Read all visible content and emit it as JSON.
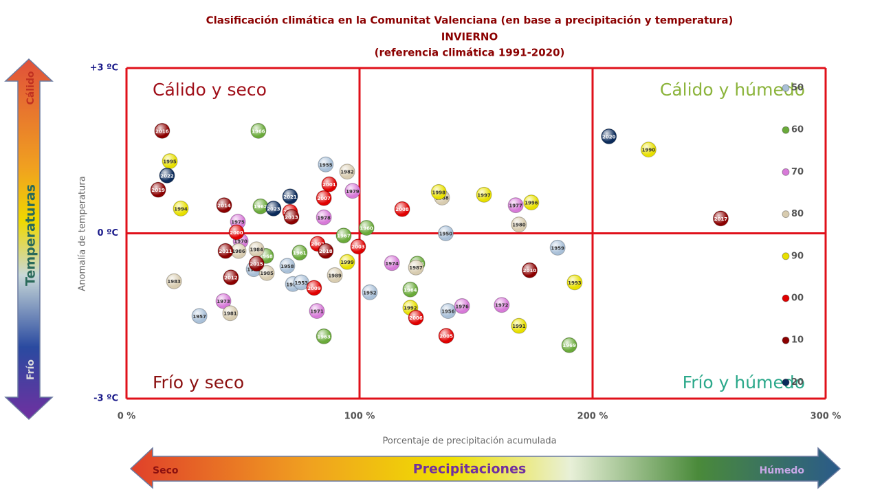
{
  "chart_data": {
    "type": "scatter",
    "title": "Clasificación climática en la Comunitat Valenciana (en base a precipitación y temperatura)",
    "subtitle": "INVIERNO",
    "subtitle2": "(referencia climática 1991-2020)",
    "xlabel": "Porcentaje de precipitación acumulada",
    "ylabel": "Anomalía de temperatura",
    "xlim": [
      0,
      300
    ],
    "ylim": [
      -3,
      3
    ],
    "xticks": [
      {
        "value": 0,
        "label": "0 %"
      },
      {
        "value": 100,
        "label": "100 %"
      },
      {
        "value": 200,
        "label": "200 %"
      },
      {
        "value": 300,
        "label": "300 %"
      }
    ],
    "yticks": [
      {
        "value": 3,
        "label": "+3 ºC"
      },
      {
        "value": 0,
        "label": "0 ºC"
      },
      {
        "value": -3,
        "label": "-3 ºC"
      }
    ],
    "grid": true,
    "grid_color": "#e0101a",
    "legend": "right",
    "quadrants": {
      "top_left": {
        "text": "Cálido y seco",
        "color": "#a0101a"
      },
      "top_right": {
        "text": "Cálido y húmedo",
        "color": "#8cb43c"
      },
      "bottom_left": {
        "text": "Frío y seco",
        "color": "#8b1010"
      },
      "bottom_right": {
        "text": "Frío y húmedo",
        "color": "#2aa88a"
      }
    },
    "annotations": {
      "temperature": "Temperaturas",
      "warm": "Cálido",
      "cold": "Frío",
      "precipitation": "Precipitaciones",
      "dry": "Seco",
      "wet": "Húmedo"
    },
    "series": [
      {
        "name": "50",
        "color": "#a9c0d8",
        "labels": [
          "1955",
          "1950",
          "1959",
          "1958",
          "1954",
          "1953",
          "1952",
          "1956",
          "1957",
          "1951"
        ],
        "x": [
          85.5,
          137,
          185,
          69,
          71.4,
          75,
          104.4,
          138,
          31.3,
          54.6
        ],
        "values": [
          1.25,
          0,
          -0.26,
          -0.59,
          -0.92,
          -0.89,
          -1.07,
          -1.41,
          -1.5,
          -0.65
        ]
      },
      {
        "name": "60",
        "color": "#6aaa3a",
        "labels": [
          "1966",
          "1962",
          "1960",
          "1967",
          "1961",
          "1968",
          "1965",
          "1964",
          "1963",
          "1969"
        ],
        "x": [
          56.6,
          57.5,
          103,
          93.2,
          74.3,
          59.9,
          124.8,
          121.8,
          84.7,
          190
        ],
        "values": [
          1.86,
          0.49,
          0.1,
          -0.04,
          -0.35,
          -0.41,
          -0.55,
          -1.02,
          -1.87,
          -2.03
        ]
      },
      {
        "name": "70",
        "color": "#d77ad8",
        "labels": [
          "1979",
          "1978",
          "1977",
          "1975",
          "1970",
          "1974",
          "1976",
          "1972",
          "1973",
          "1971"
        ],
        "x": [
          97,
          84.7,
          167,
          47.8,
          49,
          113.9,
          144,
          161,
          41.6,
          81.7
        ],
        "values": [
          0.77,
          0.29,
          0.51,
          0.21,
          -0.14,
          -0.54,
          -1.32,
          -1.3,
          -1.23,
          -1.41
        ]
      },
      {
        "name": "80",
        "color": "#d8ccb0",
        "labels": [
          "1982",
          "1988",
          "1980",
          "1984",
          "1986",
          "1985",
          "1987",
          "1989",
          "1983",
          "1981"
        ],
        "x": [
          94.7,
          135.4,
          168.4,
          55.8,
          48.1,
          60.2,
          124.2,
          89.4,
          20.4,
          44.5
        ],
        "values": [
          1.12,
          0.65,
          0.16,
          -0.29,
          -0.32,
          -0.72,
          -0.62,
          -0.76,
          -0.87,
          -1.45
        ]
      },
      {
        "name": "90",
        "color": "#e8e000",
        "labels": [
          "1995",
          "1994",
          "1990",
          "1998",
          "1997",
          "1996",
          "1999",
          "1993",
          "1992",
          "1991"
        ],
        "x": [
          18.6,
          23.3,
          224,
          134,
          153.4,
          173.7,
          94.7,
          192.3,
          121.8,
          168.4
        ],
        "values": [
          1.31,
          0.45,
          1.52,
          0.75,
          0.7,
          0.56,
          -0.52,
          -0.89,
          -1.35,
          -1.68
        ]
      },
      {
        "name": "00",
        "color": "#e00000",
        "labels": [
          "2001",
          "2007",
          "2008",
          "2004",
          "2000",
          "2002",
          "2003",
          "2009",
          "2006",
          "2005"
        ],
        "x": [
          87,
          84.7,
          118.3,
          70.2,
          47.2,
          82,
          99.4,
          80.5,
          124.2,
          137.2
        ],
        "values": [
          0.89,
          0.64,
          0.44,
          0.39,
          0.02,
          -0.19,
          -0.24,
          -0.99,
          -1.53,
          -1.86
        ]
      },
      {
        "name": "10",
        "color": "#8b0000",
        "labels": [
          "2016",
          "2019",
          "2014",
          "2013",
          "2017",
          "2011",
          "2018",
          "2015",
          "2012",
          "2010"
        ],
        "x": [
          15.3,
          13.6,
          41.9,
          70.8,
          255,
          42.5,
          85.5,
          55.8,
          44.8,
          173
        ],
        "values": [
          1.86,
          0.79,
          0.51,
          0.3,
          0.27,
          -0.32,
          -0.32,
          -0.55,
          -0.8,
          -0.67
        ]
      },
      {
        "name": "20",
        "color": "#0a2a5a",
        "labels": [
          "2020",
          "2022",
          "2021",
          "2023"
        ],
        "x": [
          207,
          17.4,
          70.2,
          63.1
        ],
        "values": [
          1.76,
          1.05,
          0.67,
          0.45
        ]
      }
    ]
  }
}
